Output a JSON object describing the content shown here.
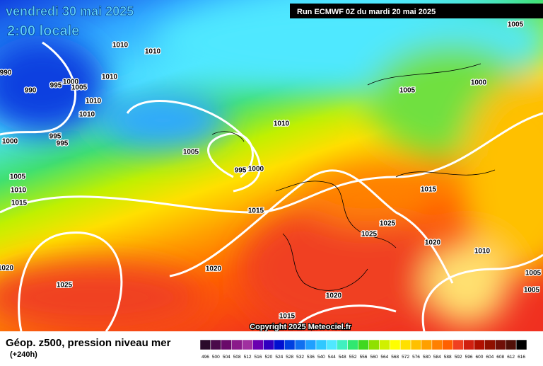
{
  "header": {
    "title": "vendredi 30 mai 2025",
    "subtitle": "2:00 locale",
    "run": "Run ECMWF 0Z du mardi 20 mai 2025"
  },
  "isobar_labels": [
    1010,
    1010,
    990,
    990,
    995,
    1000,
    1005,
    1010,
    1010,
    1010,
    995,
    995,
    1000,
    1005,
    995,
    1000,
    1010,
    1005,
    1010,
    1015,
    1015,
    1020,
    1020,
    1025,
    1015,
    1020,
    1025,
    1025,
    1020,
    1015,
    1010,
    1005,
    1005,
    1005,
    1000,
    1005
  ],
  "copyright": "Copyright 2025 Meteociel.fr",
  "legend": {
    "title": "Géop. z500, pression niveau mer",
    "lead_time": "(+240h)",
    "labels": [
      496,
      500,
      504,
      508,
      512,
      516,
      520,
      524,
      528,
      532,
      536,
      540,
      544,
      548,
      552,
      556,
      560,
      564,
      568,
      572,
      576,
      580,
      584,
      588,
      592,
      596,
      600,
      604,
      608,
      612,
      616
    ],
    "colors": [
      "#2b0a2b",
      "#4a0a4a",
      "#6a0a6a",
      "#8a1a8a",
      "#a030a0",
      "#6a00b0",
      "#3000c0",
      "#0010d0",
      "#0040e0",
      "#1070f0",
      "#20a0ff",
      "#30c8ff",
      "#50e8ff",
      "#40f0c0",
      "#30e870",
      "#40d820",
      "#90e000",
      "#d0f000",
      "#ffff00",
      "#ffe000",
      "#ffc000",
      "#ffa000",
      "#ff8000",
      "#ff6000",
      "#f04020",
      "#d02010",
      "#b01000",
      "#901000",
      "#701008",
      "#501008",
      "#000000"
    ]
  }
}
